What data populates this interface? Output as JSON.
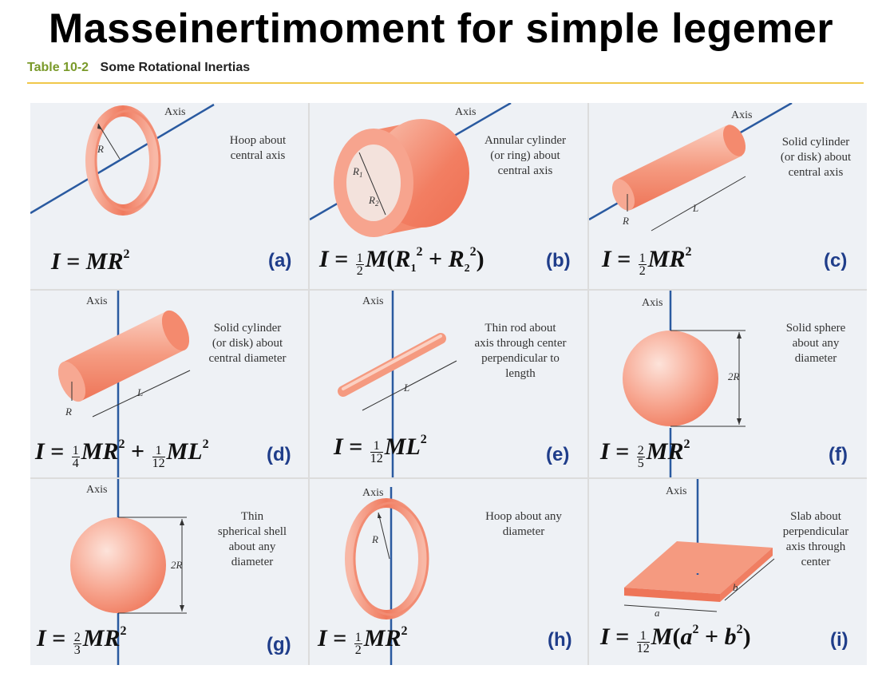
{
  "title": "Masseinertimoment for simple legemer",
  "table": {
    "number": "Table 10-2",
    "caption": "Some Rotational Inertias"
  },
  "colors": {
    "accent_rule": "#f0c84a",
    "table_number": "#7a9a2a",
    "panel_label": "#1f3d8a",
    "axis_line": "#2a5aa0",
    "body_fill": "#f4917a"
  },
  "panels": [
    {
      "label": "(a)",
      "axis": "Axis",
      "description": [
        "Hoop about",
        "central axis"
      ],
      "dims": {
        "r": "R"
      },
      "formula": {
        "lhs": "I",
        "rhs": "MR",
        "exp": "2"
      }
    },
    {
      "label": "(b)",
      "axis": "Axis",
      "description": [
        "Annular cylinder",
        "(or ring) about",
        "central axis"
      ],
      "dims": {
        "r1": "R1",
        "r2": "R2"
      },
      "formula": {
        "lhs": "I",
        "num": "1",
        "den": "2",
        "mass": "M",
        "t1": "R",
        "s1": "1",
        "e1": "2",
        "t2": "R",
        "s2": "2",
        "e2": "2"
      }
    },
    {
      "label": "(c)",
      "axis": "Axis",
      "description": [
        "Solid cylinder",
        "(or disk) about",
        "central axis"
      ],
      "dims": {
        "r": "R",
        "l": "L"
      },
      "formula": {
        "lhs": "I",
        "num": "1",
        "den": "2",
        "rhs": "MR",
        "exp": "2"
      }
    },
    {
      "label": "(d)",
      "axis": "Axis",
      "description": [
        "Solid cylinder",
        "(or disk) about",
        "central diameter"
      ],
      "dims": {
        "r": "R",
        "l": "L"
      },
      "formula": {
        "lhs": "I",
        "num1": "1",
        "den1": "4",
        "t1": "MR",
        "e1": "2",
        "num2": "1",
        "den2": "12",
        "t2": "ML",
        "e2": "2"
      }
    },
    {
      "label": "(e)",
      "axis": "Axis",
      "description": [
        "Thin rod about",
        "axis through center",
        "perpendicular to",
        "length"
      ],
      "dims": {
        "l": "L"
      },
      "formula": {
        "lhs": "I",
        "num": "1",
        "den": "12",
        "rhs": "ML",
        "exp": "2"
      }
    },
    {
      "label": "(f)",
      "axis": "Axis",
      "description": [
        "Solid sphere",
        "about any",
        "diameter"
      ],
      "dims": {
        "d": "2R"
      },
      "formula": {
        "lhs": "I",
        "num": "2",
        "den": "5",
        "rhs": "MR",
        "exp": "2"
      }
    },
    {
      "label": "(g)",
      "axis": "Axis",
      "description": [
        "Thin",
        "spherical shell",
        "about any",
        "diameter"
      ],
      "dims": {
        "d": "2R"
      },
      "formula": {
        "lhs": "I",
        "num": "2",
        "den": "3",
        "rhs": "MR",
        "exp": "2"
      }
    },
    {
      "label": "(h)",
      "axis": "Axis",
      "description": [
        "Hoop about any",
        "diameter"
      ],
      "dims": {
        "r": "R"
      },
      "formula": {
        "lhs": "I",
        "num": "1",
        "den": "2",
        "rhs": "MR",
        "exp": "2"
      }
    },
    {
      "label": "(i)",
      "axis": "Axis",
      "description": [
        "Slab about",
        "perpendicular",
        "axis through",
        "center"
      ],
      "dims": {
        "a": "a",
        "b": "b"
      },
      "formula": {
        "lhs": "I",
        "num": "1",
        "den": "12",
        "mass": "M",
        "t1": "a",
        "e1": "2",
        "t2": "b",
        "e2": "2"
      }
    }
  ]
}
